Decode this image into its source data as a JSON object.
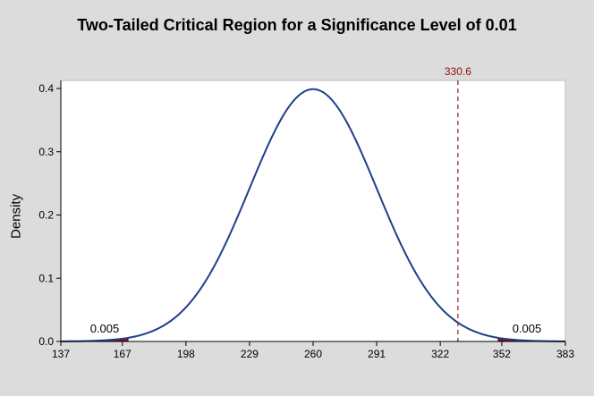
{
  "chart_data": {
    "type": "line",
    "title": "Two-Tailed Critical Region for a Significance Level of 0.01",
    "xlabel": "",
    "ylabel": "Density",
    "distribution": "normal",
    "mean": 260,
    "sd": 1,
    "x_axis_scale": "x = 260 + 31 * z",
    "xlim": [
      137,
      383
    ],
    "ylim": [
      0,
      0.4
    ],
    "x_ticks": [
      137,
      167,
      198,
      229,
      260,
      291,
      322,
      352,
      383
    ],
    "y_ticks": [
      0.0,
      0.1,
      0.2,
      0.3,
      0.4
    ],
    "y_tick_labels": [
      "0.0",
      "0.1",
      "0.2",
      "0.3",
      "0.4"
    ],
    "critical_regions": [
      {
        "side": "left",
        "from": 137,
        "to": 170.0,
        "area_label": "0.005"
      },
      {
        "side": "right",
        "from": 350.0,
        "to": 383,
        "area_label": "0.005"
      }
    ],
    "reference_line": {
      "x": 330.6,
      "label": "330.6",
      "style": "dashed"
    },
    "grid": false,
    "colors": {
      "curve": "#1f3f8a",
      "shaded_region": "#8b0f0f",
      "reference_line": "#a01818",
      "reference_label": "#8b0f0f"
    }
  }
}
